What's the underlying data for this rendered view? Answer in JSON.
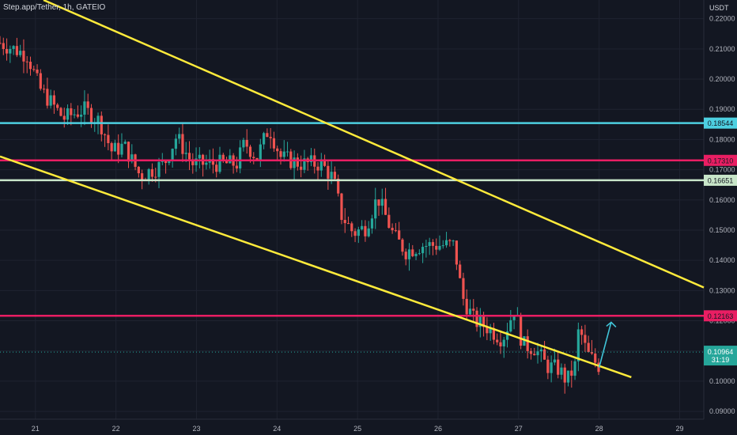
{
  "symbol": {
    "title": "Step.app/Tether, 1h, GATEIO"
  },
  "price_axis": {
    "unit": "USDT"
  },
  "countdown": "31:19",
  "colors": {
    "background": "#131722",
    "grid": "#1f2330",
    "up": "#26a69a",
    "down": "#ef5350",
    "trendline": "#ffeb3b",
    "arrow": "#40c4d8"
  },
  "chart_data": {
    "type": "candlestick",
    "title": "Step.app/Tether, 1h, GATEIO",
    "ylabel": "USDT",
    "ylim": [
      0.0874,
      0.2262
    ],
    "xlim": [
      20.56,
      29.3
    ],
    "x_ticks": [
      "21",
      "22",
      "23",
      "24",
      "25",
      "26",
      "27",
      "28",
      "29"
    ],
    "y_ticks": [
      "0.22000",
      "0.21000",
      "0.20000",
      "0.19000",
      "0.18000",
      "0.17000",
      "0.16000",
      "0.15000",
      "0.14000",
      "0.13000",
      "0.12000",
      "0.11000",
      "0.10000",
      "0.09000"
    ],
    "grid": true,
    "levels": [
      {
        "price": 0.18544,
        "label": "0.18544",
        "color": "#4dd0e1"
      },
      {
        "price": 0.1731,
        "label": "0.17310",
        "color": "#e91e63"
      },
      {
        "price": 0.16651,
        "label": "0.16651",
        "color": "#c8e6c9"
      },
      {
        "price": 0.12163,
        "label": "0.12163",
        "color": "#e91e63"
      }
    ],
    "last_price": {
      "value": 0.10964,
      "label": "0.10964"
    },
    "trendlines": [
      {
        "from": [
          21.1,
          0.2262
        ],
        "to": [
          29.3,
          0.131
        ]
      },
      {
        "from": [
          20.56,
          0.1744
        ],
        "to": [
          28.4,
          0.1013
        ]
      }
    ],
    "arrow": {
      "from": [
        28.0,
        0.1045
      ],
      "to": [
        28.15,
        0.1195
      ]
    },
    "candle_anchors": [
      [
        20.56,
        0.212
      ],
      [
        20.9,
        0.208
      ],
      [
        21.05,
        0.197
      ],
      [
        21.35,
        0.187
      ],
      [
        21.6,
        0.19
      ],
      [
        21.8,
        0.186
      ],
      [
        21.95,
        0.176
      ],
      [
        22.1,
        0.178
      ],
      [
        22.3,
        0.168
      ],
      [
        22.6,
        0.172
      ],
      [
        22.75,
        0.181
      ],
      [
        22.95,
        0.172
      ],
      [
        23.2,
        0.172
      ],
      [
        23.5,
        0.172
      ],
      [
        23.6,
        0.179
      ],
      [
        23.75,
        0.174
      ],
      [
        23.9,
        0.184
      ],
      [
        24.05,
        0.174
      ],
      [
        24.3,
        0.172
      ],
      [
        24.55,
        0.172
      ],
      [
        24.7,
        0.167
      ],
      [
        24.8,
        0.155
      ],
      [
        24.95,
        0.149
      ],
      [
        25.1,
        0.151
      ],
      [
        25.25,
        0.161
      ],
      [
        25.45,
        0.148
      ],
      [
        25.6,
        0.143
      ],
      [
        25.8,
        0.145
      ],
      [
        26.0,
        0.145
      ],
      [
        26.2,
        0.145
      ],
      [
        26.3,
        0.128
      ],
      [
        26.45,
        0.12
      ],
      [
        26.6,
        0.118
      ],
      [
        26.8,
        0.114
      ],
      [
        26.95,
        0.124
      ],
      [
        27.05,
        0.112
      ],
      [
        27.2,
        0.111
      ],
      [
        27.35,
        0.105
      ],
      [
        27.5,
        0.104
      ],
      [
        27.6,
        0.1
      ],
      [
        27.7,
        0.105
      ],
      [
        27.75,
        0.118
      ],
      [
        27.85,
        0.109
      ],
      [
        28.0,
        0.105
      ]
    ]
  }
}
